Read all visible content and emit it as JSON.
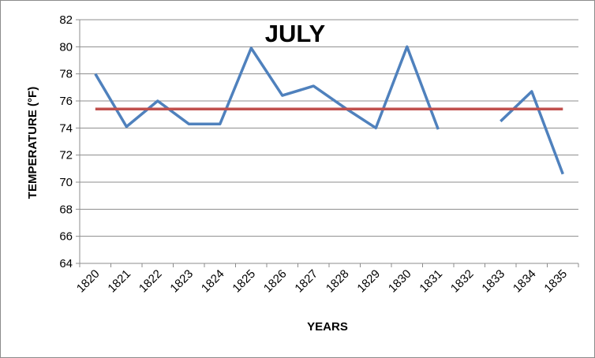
{
  "chart_data": {
    "type": "line",
    "title": "JULY",
    "xlabel": "YEARS",
    "ylabel": "TEMPERATURE (°F)",
    "categories": [
      "1820",
      "1821",
      "1822",
      "1823",
      "1824",
      "1825",
      "1826",
      "1827",
      "1828",
      "1829",
      "1830",
      "1831",
      "1832",
      "1833",
      "1834",
      "1835"
    ],
    "ylim": [
      64,
      82
    ],
    "yticks": [
      64,
      66,
      68,
      70,
      72,
      74,
      76,
      78,
      80,
      82
    ],
    "grid": true,
    "legend": "none",
    "series": [
      {
        "color": "#4f81bd",
        "values": [
          78.0,
          74.1,
          76.0,
          74.3,
          74.3,
          79.9,
          76.4,
          77.1,
          75.5,
          74.0,
          80.0,
          73.9,
          null,
          74.5,
          76.7,
          70.6
        ]
      },
      {
        "color": "#c0504d",
        "values": [
          75.4,
          75.4,
          75.4,
          75.4,
          75.4,
          75.4,
          75.4,
          75.4,
          75.4,
          75.4,
          75.4,
          75.4,
          75.4,
          75.4,
          75.4,
          75.4
        ]
      }
    ]
  }
}
